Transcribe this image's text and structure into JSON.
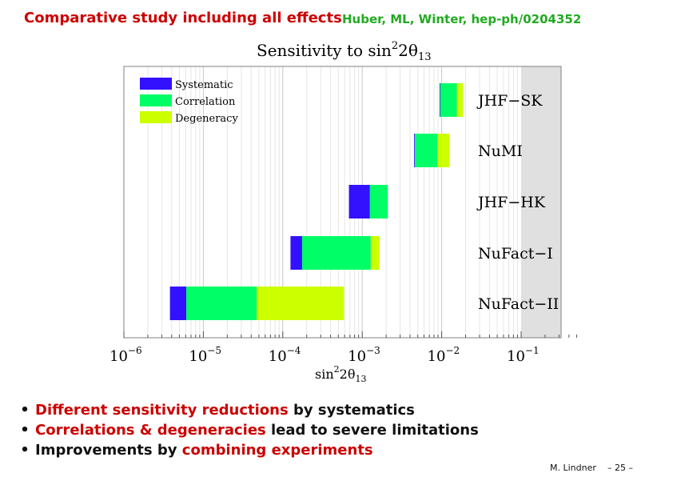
{
  "header": {
    "title": "Comparative study including all effects",
    "reference": "Huber, ML, Winter, hep-ph/0204352"
  },
  "chart_data": {
    "type": "bar",
    "orientation": "horizontal",
    "stacked": true,
    "title_text": "Sensitivity to sin",
    "title_exp": "2",
    "title_tail": "2θ",
    "title_sub": "13",
    "xlabel_text": "sin",
    "xlabel_exp": "2",
    "xlabel_tail": "2θ",
    "xlabel_sub": "13",
    "xscale": "log",
    "xlim": [
      1e-06,
      0.5
    ],
    "x_ticks": [
      {
        "value": 1e-06,
        "base": "10",
        "exp": "−6"
      },
      {
        "value": 1e-05,
        "base": "10",
        "exp": "−5"
      },
      {
        "value": 0.0001,
        "base": "10",
        "exp": "−4"
      },
      {
        "value": 0.001,
        "base": "10",
        "exp": "−3"
      },
      {
        "value": 0.01,
        "base": "10",
        "exp": "−2"
      },
      {
        "value": 0.1,
        "base": "10",
        "exp": "−1"
      }
    ],
    "shaded_region": [
      0.1,
      0.5
    ],
    "grid": true,
    "legend_position": "top-left",
    "legend": [
      {
        "label": "Systematic",
        "color": "#3311ff"
      },
      {
        "label": "Correlation",
        "color": "#00ff66"
      },
      {
        "label": "Degeneracy",
        "color": "#ccff00"
      }
    ],
    "categories": [
      "JHF−SK",
      "NuMI",
      "JHF−HK",
      "NuFact−I",
      "NuFact−II"
    ],
    "bars": [
      {
        "experiment": "JHF−SK",
        "segments": [
          [
            0.0094,
            0.0096
          ],
          [
            0.0096,
            0.0155
          ],
          [
            0.0155,
            0.0185
          ]
        ]
      },
      {
        "experiment": "NuMI",
        "segments": [
          [
            0.0045,
            0.0046
          ],
          [
            0.0046,
            0.0088
          ],
          [
            0.0088,
            0.0125
          ]
        ]
      },
      {
        "experiment": "JHF−HK",
        "segments": [
          [
            0.00068,
            0.00125
          ],
          [
            0.00125,
            0.0021
          ],
          [
            0.0021,
            0.0021
          ]
        ]
      },
      {
        "experiment": "NuFact−I",
        "segments": [
          [
            0.000125,
            0.000175
          ],
          [
            0.000175,
            0.00128
          ],
          [
            0.00128,
            0.00165
          ]
        ]
      },
      {
        "experiment": "NuFact−II",
        "segments": [
          [
            3.8e-06,
            6.1e-06
          ],
          [
            6.1e-06,
            4.7e-05
          ],
          [
            4.7e-05,
            0.00059
          ]
        ]
      }
    ]
  },
  "bullets": [
    {
      "highlight": "Different sensitivity reductions",
      "rest": " by systematics"
    },
    {
      "highlight": "Correlations & degeneracies",
      "rest": " lead to severe limitations"
    },
    {
      "prefix": "Improvements by ",
      "highlight": "combining experiments"
    }
  ],
  "footer": {
    "author": "M. Lindner",
    "page": "– 25 –"
  }
}
